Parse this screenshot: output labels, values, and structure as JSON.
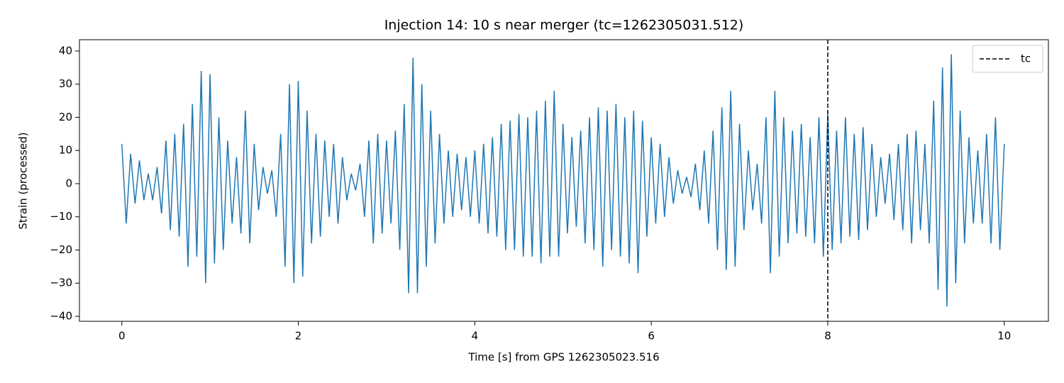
{
  "chart_data": {
    "type": "line",
    "title": "Injection 14: 10 s near merger (tc=1262305031.512)",
    "xlabel": "Time [s] from GPS 1262305023.516",
    "ylabel": "Strain (processed)",
    "color": "#1f77b4",
    "x": [
      0,
      0.05,
      0.1,
      0.15,
      0.2,
      0.25,
      0.3,
      0.35,
      0.4,
      0.45,
      0.5,
      0.55,
      0.6,
      0.65,
      0.7,
      0.75,
      0.8,
      0.85,
      0.9,
      0.95,
      1,
      1.05,
      1.1,
      1.15,
      1.2,
      1.25,
      1.3,
      1.35,
      1.4,
      1.45,
      1.5,
      1.55,
      1.6,
      1.65,
      1.7,
      1.75,
      1.8,
      1.85,
      1.9,
      1.95,
      2,
      2.05,
      2.1,
      2.15,
      2.2,
      2.25,
      2.3,
      2.35,
      2.4,
      2.45,
      2.5,
      2.55,
      2.6,
      2.65,
      2.7,
      2.75,
      2.8,
      2.85,
      2.9,
      2.95,
      3,
      3.05,
      3.1,
      3.15,
      3.2,
      3.25,
      3.3,
      3.35,
      3.4,
      3.45,
      3.5,
      3.55,
      3.6,
      3.65,
      3.7,
      3.75,
      3.8,
      3.85,
      3.9,
      3.95,
      4,
      4.05,
      4.1,
      4.15,
      4.2,
      4.25,
      4.3,
      4.35,
      4.4,
      4.45,
      4.5,
      4.55,
      4.6,
      4.65,
      4.7,
      4.75,
      4.8,
      4.85,
      4.9,
      4.95,
      5,
      5.05,
      5.1,
      5.15,
      5.2,
      5.25,
      5.3,
      5.35,
      5.4,
      5.45,
      5.5,
      5.55,
      5.6,
      5.65,
      5.7,
      5.75,
      5.8,
      5.85,
      5.9,
      5.95,
      6,
      6.05,
      6.1,
      6.15,
      6.2,
      6.25,
      6.3,
      6.35,
      6.4,
      6.45,
      6.5,
      6.55,
      6.6,
      6.65,
      6.7,
      6.75,
      6.8,
      6.85,
      6.9,
      6.95,
      7,
      7.05,
      7.1,
      7.15,
      7.2,
      7.25,
      7.3,
      7.35,
      7.4,
      7.45,
      7.5,
      7.55,
      7.6,
      7.65,
      7.7,
      7.75,
      7.8,
      7.85,
      7.9,
      7.95,
      8,
      8.05,
      8.1,
      8.15,
      8.2,
      8.25,
      8.3,
      8.35,
      8.4,
      8.45,
      8.5,
      8.55,
      8.6,
      8.65,
      8.7,
      8.75,
      8.8,
      8.85,
      8.9,
      8.95,
      9,
      9.05,
      9.1,
      9.15,
      9.2,
      9.25,
      9.3,
      9.35,
      9.4,
      9.45,
      9.5,
      9.55,
      9.6,
      9.65,
      9.7,
      9.75,
      9.8,
      9.85,
      9.9,
      9.95,
      10
    ],
    "values": [
      12,
      -12,
      9,
      -6,
      7,
      -5,
      3,
      -5,
      5,
      -9,
      13,
      -14,
      15,
      -16,
      18,
      -25,
      24,
      -22,
      34,
      -30,
      33,
      -24,
      20,
      -20,
      13,
      -12,
      8,
      -15,
      22,
      -18,
      12,
      -8,
      5,
      -3,
      4,
      -10,
      15,
      -25,
      30,
      -30,
      31,
      -28,
      22,
      -18,
      15,
      -16,
      13,
      -10,
      12,
      -12,
      8,
      -5,
      3,
      -2,
      6,
      -10,
      13,
      -18,
      15,
      -15,
      13,
      -12,
      16,
      -20,
      24,
      -33,
      38,
      -33,
      30,
      -25,
      22,
      -18,
      15,
      -12,
      10,
      -10,
      9,
      -8,
      8,
      -10,
      10,
      -12,
      12,
      -15,
      14,
      -16,
      18,
      -20,
      19,
      -20,
      21,
      -22,
      20,
      -22,
      22,
      -24,
      25,
      -22,
      28,
      -22,
      18,
      -15,
      14,
      -13,
      16,
      -18,
      20,
      -20,
      23,
      -25,
      22,
      -20,
      24,
      -22,
      20,
      -24,
      22,
      -27,
      19,
      -16,
      14,
      -12,
      12,
      -10,
      8,
      -6,
      4,
      -3,
      2,
      -4,
      6,
      -8,
      10,
      -12,
      16,
      -20,
      23,
      -26,
      28,
      -25,
      18,
      -14,
      10,
      -8,
      6,
      -12,
      20,
      -27,
      28,
      -22,
      20,
      -18,
      16,
      -15,
      18,
      -16,
      14,
      -18,
      20,
      -22,
      21,
      -20,
      16,
      -18,
      20,
      -16,
      15,
      -17,
      17,
      -14,
      12,
      -10,
      8,
      -6,
      9,
      -11,
      12,
      -14,
      15,
      -18,
      16,
      -14,
      12,
      -18,
      25,
      -32,
      35,
      -37,
      39,
      -30,
      22,
      -18,
      14,
      -12,
      10,
      -12,
      15,
      -18,
      20,
      -20,
      12
    ],
    "xlim": [
      -0.48,
      10.5
    ],
    "ylim": [
      -41.5,
      43.4
    ],
    "xticks": [
      0,
      2,
      4,
      6,
      8,
      10
    ],
    "yticks": [
      {
        "value": -40,
        "label": "−40"
      },
      {
        "value": -30,
        "label": "−30"
      },
      {
        "value": -20,
        "label": "−20"
      },
      {
        "value": -10,
        "label": "−10"
      },
      0,
      10,
      20,
      30,
      40
    ],
    "vline": {
      "x": 8,
      "label": "tc",
      "color": "#000000"
    },
    "legend": "upper right"
  }
}
